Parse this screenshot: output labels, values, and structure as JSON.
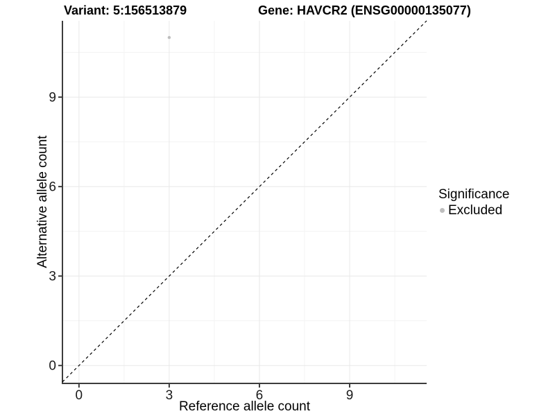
{
  "titles": {
    "left": "Variant: 5:156513879",
    "right": "Gene: HAVCR2 (ENSG00000135077)"
  },
  "chart_data": {
    "type": "scatter",
    "points": [
      {
        "x": 3,
        "y": 11,
        "series": "Excluded"
      }
    ],
    "xlabel": "Reference allele count",
    "ylabel": "Alternative allele count",
    "x_ticks": [
      0,
      3,
      6,
      9
    ],
    "y_ticks": [
      0,
      3,
      6,
      9
    ],
    "x_minor_ticks": [
      1.5,
      4.5,
      7.5,
      10.5
    ],
    "y_minor_ticks": [
      1.5,
      4.5,
      7.5,
      10.5
    ],
    "xlim": [
      -0.55,
      11.56
    ],
    "ylim": [
      -0.6,
      11.56
    ],
    "grid": true,
    "identity_line": {
      "slope": 1,
      "intercept": 0,
      "style": "dashed",
      "color": "#000000"
    },
    "legend": {
      "position": "right",
      "title": "Significance",
      "items": [
        {
          "label": "Excluded",
          "color": "#bebebe"
        }
      ]
    },
    "colors": {
      "axis_line": "#3c3c3c",
      "tick_mark": "#3c3c3c",
      "tick_label": "#1a1a1a",
      "grid_major": "#e8e8e8",
      "grid_minor": "#f3f3f3",
      "point": "#bebebe"
    }
  }
}
